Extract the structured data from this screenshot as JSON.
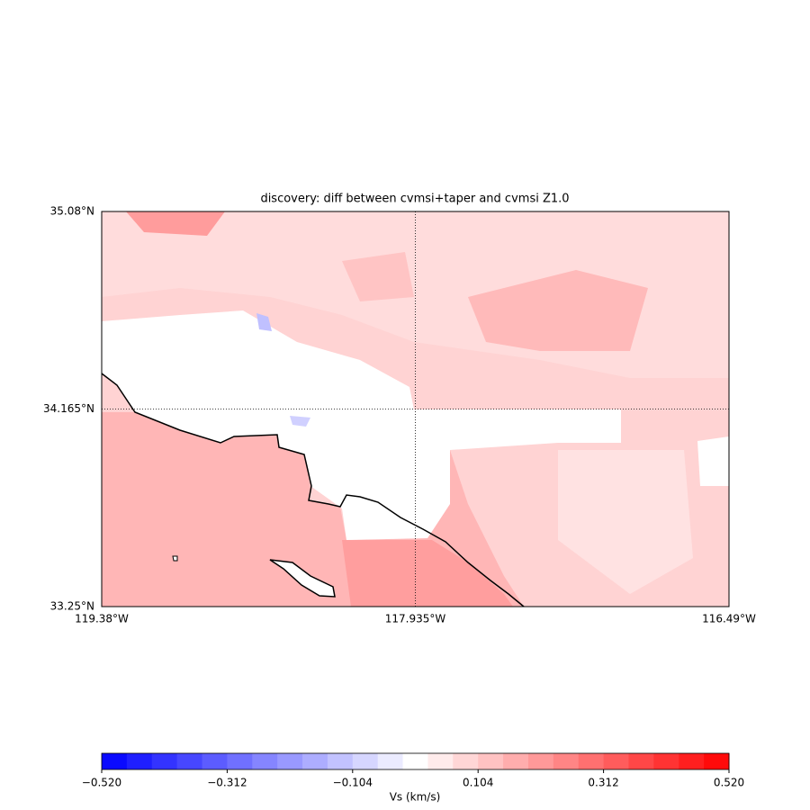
{
  "chart_data": {
    "type": "map",
    "title": "discovery: diff between cvmsi+taper and cvmsi Z1.0",
    "xlim": [
      -119.38,
      -116.49
    ],
    "ylim": [
      33.25,
      35.08
    ],
    "xticks": [
      {
        "value": -119.38,
        "label": "119.38°W"
      },
      {
        "value": -117.935,
        "label": "117.935°W"
      },
      {
        "value": -116.49,
        "label": "116.49°W"
      }
    ],
    "yticks": [
      {
        "value": 33.25,
        "label": "33.25°N"
      },
      {
        "value": 34.165,
        "label": "34.165°N"
      },
      {
        "value": 35.08,
        "label": "35.08°N"
      }
    ],
    "grid": true,
    "colorbar": {
      "label": "Vs (km/s)",
      "lim": [
        -0.52,
        0.52
      ],
      "ticks": [
        {
          "value": -0.52,
          "label": "−0.520"
        },
        {
          "value": -0.312,
          "label": "−0.312"
        },
        {
          "value": -0.104,
          "label": "−0.104"
        },
        {
          "value": 0.104,
          "label": "0.104"
        },
        {
          "value": 0.312,
          "label": "0.312"
        },
        {
          "value": 0.52,
          "label": "0.520"
        }
      ],
      "bins": [
        -0.52,
        -0.4784,
        -0.4368,
        -0.3952,
        -0.3536,
        -0.312,
        -0.2704,
        -0.2288,
        -0.1872,
        -0.1456,
        -0.104,
        -0.0624,
        -0.0208,
        0.0208,
        0.0624,
        0.104,
        0.1456,
        0.1872,
        0.2288,
        0.2704,
        0.312,
        0.3536,
        0.3952,
        0.4368,
        0.4784,
        0.52
      ],
      "colors": [
        "#0a0aff",
        "#1f1fff",
        "#3333ff",
        "#4747ff",
        "#5c5cff",
        "#7070ff",
        "#8585ff",
        "#9999ff",
        "#adadff",
        "#c2c2ff",
        "#d6d6ff",
        "#ebebff",
        "#ffffff",
        "#ffebeb",
        "#ffd6d6",
        "#ffc2c2",
        "#ffadad",
        "#ff9999",
        "#ff8585",
        "#ff7070",
        "#ff5c5c",
        "#ff4747",
        "#ff3333",
        "#ff1f1f",
        "#ff0a0a"
      ]
    }
  }
}
